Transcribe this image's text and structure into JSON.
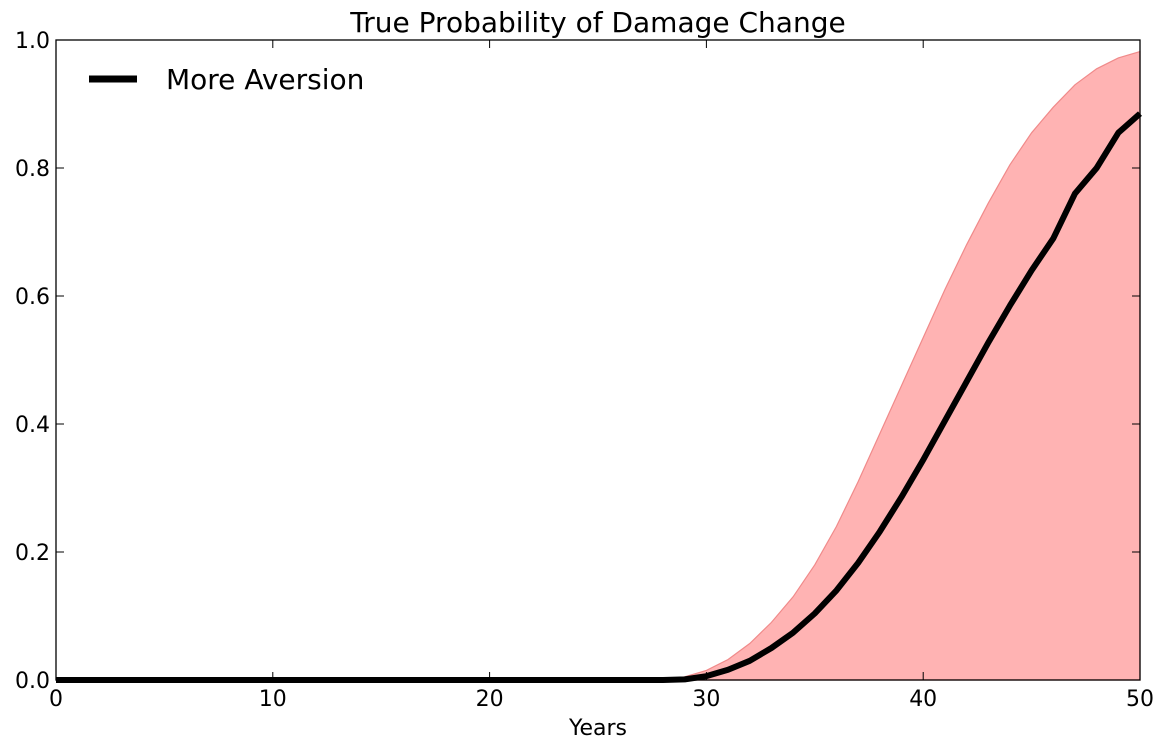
{
  "chart_data": {
    "type": "line",
    "title": "True Probability of Damage Change",
    "xlabel": "Years",
    "ylabel": "",
    "xlim": [
      0,
      50
    ],
    "ylim": [
      0,
      1.0
    ],
    "xticks": [
      "0",
      "10",
      "20",
      "30",
      "40",
      "50"
    ],
    "yticks": [
      "0.0",
      "0.2",
      "0.4",
      "0.6",
      "0.8",
      "1.0"
    ],
    "grid": false,
    "legend_position": "top-left",
    "series": [
      {
        "name": "More Aversion",
        "color": "#000000",
        "x": [
          0,
          5,
          10,
          15,
          20,
          25,
          28,
          29,
          30,
          31,
          32,
          33,
          34,
          35,
          36,
          37,
          38,
          39,
          40,
          41,
          42,
          43,
          44,
          45,
          46,
          47,
          48,
          49,
          50
        ],
        "values": [
          0,
          0,
          0,
          0,
          0,
          0,
          0,
          0.001,
          0.006,
          0.016,
          0.03,
          0.05,
          0.074,
          0.104,
          0.14,
          0.183,
          0.232,
          0.286,
          0.344,
          0.405,
          0.466,
          0.527,
          0.585,
          0.64,
          0.69,
          0.76,
          0.8,
          0.855,
          0.885
        ]
      }
    ],
    "band": {
      "color": "#ff9a9a",
      "edge_color": "#f08a8a",
      "x": [
        0,
        5,
        10,
        15,
        20,
        25,
        28,
        29,
        30,
        31,
        32,
        33,
        34,
        35,
        36,
        37,
        38,
        39,
        40,
        41,
        42,
        43,
        44,
        45,
        46,
        47,
        48,
        49,
        50
      ],
      "lower": [
        0,
        0,
        0,
        0,
        0,
        0,
        0,
        0,
        0,
        0,
        0,
        0,
        0,
        0,
        0,
        0,
        0,
        0,
        0,
        0,
        0,
        0,
        0,
        0,
        0,
        0,
        0,
        0,
        0
      ],
      "upper": [
        0,
        0,
        0,
        0,
        0,
        0,
        0.001,
        0.005,
        0.015,
        0.032,
        0.057,
        0.09,
        0.13,
        0.18,
        0.24,
        0.31,
        0.385,
        0.46,
        0.535,
        0.61,
        0.68,
        0.745,
        0.805,
        0.855,
        0.895,
        0.93,
        0.955,
        0.972,
        0.982
      ]
    }
  }
}
